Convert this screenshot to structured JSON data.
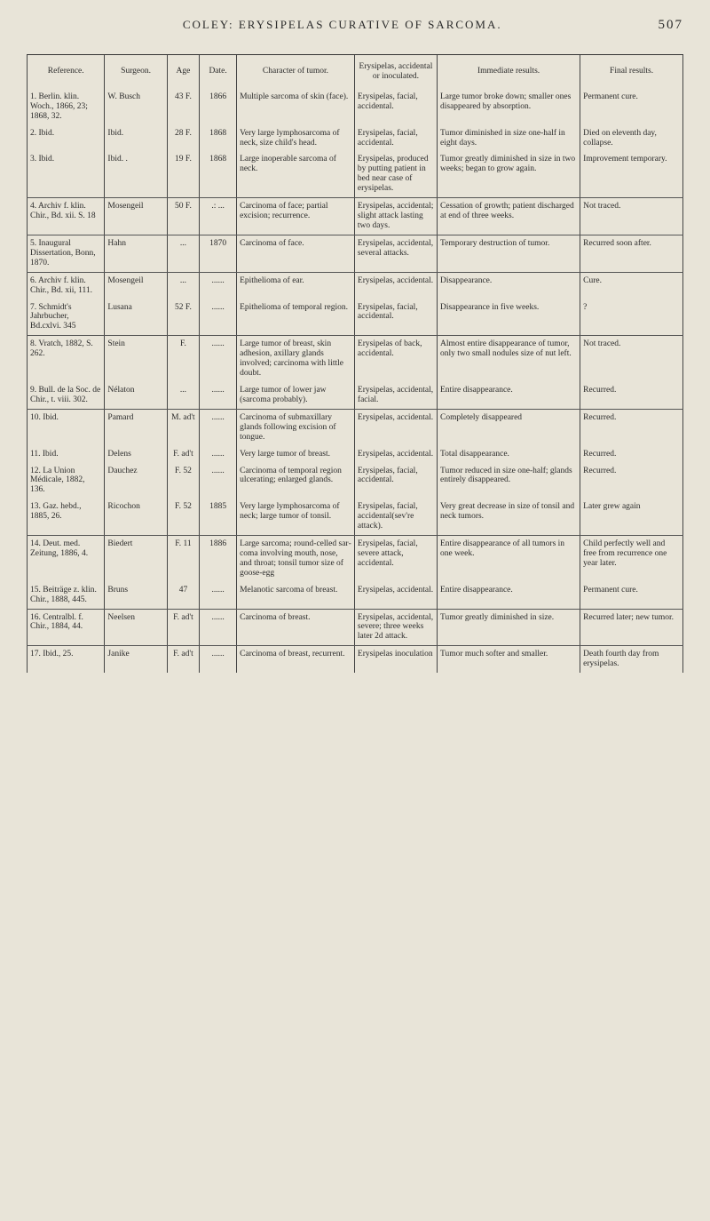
{
  "header": {
    "running_title": "COLEY: ERYSIPELAS CURATIVE OF SARCOMA.",
    "page_number": "507"
  },
  "table": {
    "columns": [
      "Reference.",
      "Surgeon.",
      "Age",
      "Date.",
      "Character of tumor.",
      "Erysipelas, accidental or inoculated.",
      "Immediate results.",
      "Final results."
    ],
    "rows": [
      {
        "ref": "1. Berlin. klin. Woch., 1866, 23; 1868, 32.",
        "surg": "W. Busch",
        "age": "43 F.",
        "date": "1866",
        "char": "Multiple sarcoma of skin (face).",
        "ery": "Erysipelas, facial, acci­dental.",
        "imm": "Large tumor broke down; smaller ones disappeared by ab­sorption.",
        "fin": "Permanent cure."
      },
      {
        "ref": "2. Ibid.",
        "surg": "Ibid.",
        "age": "28 F.",
        "date": "1868",
        "char": "Very large lympho­sarcoma of neck, size child's head.",
        "ery": "Erysipelas, facial, acci­dental.",
        "imm": "Tumor diminished in size one-half in eight days.",
        "fin": "Died on eleventh day, collapse."
      },
      {
        "ref": "3. Ibid.",
        "surg": "Ibid. .",
        "age": "19 F.",
        "date": "1868",
        "char": "Large inoperable sarcoma of neck.",
        "ery": "Erysipelas, produced by putting pa­tient in bed near case of erysipelas.",
        "imm": "Tumor greatly dimin­ished in size in two weeks; began to grow again.",
        "fin": "Improvement temporary."
      },
      {
        "ref": "4. Archiv f. klin. Chir., Bd. xii. S. 18",
        "surg": "Mosengeil",
        "age": "50 F.",
        "date": ".: ...",
        "char": "Carcinoma of face; partial excision; recurrence.",
        "ery": "Erysipelas, accidental; slight attack lasting two days.",
        "imm": "Cessation of growth; patient discharged at end of three weeks.",
        "fin": "Not traced."
      },
      {
        "ref": "5. Inaugural Dissertation, Bonn, 1870.",
        "surg": "Hahn",
        "age": "...",
        "date": "1870",
        "char": "Carcinoma of face.",
        "ery": "Erysipelas, accidental, several at­tacks.",
        "imm": "Temporary destruction of tumor.",
        "fin": "Recurred soon after."
      },
      {
        "ref": "6. Archiv f. klin. Chir., Bd. xii, 111.",
        "surg": "Mosengeil",
        "age": "...",
        "date": "......",
        "char": "Epithelioma of ear.",
        "ery": "Erysipelas, accidental.",
        "imm": "Disappearance.",
        "fin": "Cure."
      },
      {
        "ref": "7. Schmidt's Jahrbucher, Bd.cxlvi. 345",
        "surg": "Lusana",
        "age": "52 F.",
        "date": "......",
        "char": "Epithelioma of temporal region.",
        "ery": "Erysipelas, facial, acci­dental.",
        "imm": "Disappearance in five weeks.",
        "fin": "?"
      },
      {
        "ref": "8. Vratch, 1882, S. 262.",
        "surg": "Stein",
        "age": "F.",
        "date": "......",
        "char": "Large tumor of breast, skin adhe­sion, axillary glands involved; carcinoma with little doubt.",
        "ery": "Erysipelas of back, accidental.",
        "imm": "Almost entire disap­pearance of tumor, only two small no­dules size of nut left.",
        "fin": "Not traced."
      },
      {
        "ref": "9. Bull. de la Soc. de Chir., t. viii. 302.",
        "surg": "Nélaton",
        "age": "...",
        "date": "......",
        "char": "Large tumor of lower jaw (sarco­ma probably).",
        "ery": "Erysipelas, accidental, facial.",
        "imm": "Entire disappearance.",
        "fin": "Recurred."
      },
      {
        "ref": "10. Ibid.",
        "surg": "Pamard",
        "age": "M. ad't",
        "date": "......",
        "char": "Carcinoma of sub­maxillary glands following excision of tongue.",
        "ery": "Erysipelas, accidental.",
        "imm": "Completely disappeared",
        "fin": "Recurred."
      },
      {
        "ref": "11. Ibid.",
        "surg": "Delens",
        "age": "F. ad't",
        "date": "......",
        "char": "Very large tumor of breast.",
        "ery": "Erysipelas, accidental.",
        "imm": "Total disappearance.",
        "fin": "Recurred."
      },
      {
        "ref": "12. La Union Médicale, 1882, 136.",
        "surg": "Dauchez",
        "age": "F. 52",
        "date": "......",
        "char": "Carcinoma of tem­poral region ulce­rating; enlarged glands.",
        "ery": "Erysipelas, facial, acci­dental.",
        "imm": "Tumor reduced in size one-half; glands en­tirely disappeared.",
        "fin": "Recurred."
      },
      {
        "ref": "13. Gaz. hebd., 1885, 26.",
        "surg": "Ricochon",
        "age": "F. 52",
        "date": "1885",
        "char": "Very large lympho­sarcoma of neck; large tumor of tonsil.",
        "ery": "Erysipelas, facial, acci­dental(sev're attack).",
        "imm": "Very great decrease in size of tonsil and neck tumors.",
        "fin": "Later grew again"
      },
      {
        "ref": "14. Deut. med. Zeitung, 1886, 4.",
        "surg": "Biedert",
        "age": "F. 11",
        "date": "1886",
        "char": "Large sarcoma; round-celled sar­coma involving mouth, nose, and throat; tonsil tu­mor size of goose-egg",
        "ery": "Erysipelas, facial, severe attack, accidental.",
        "imm": "Entire disappearance of all tumors in one week.",
        "fin": "Child perfectly well and free from recur­rence one year later."
      },
      {
        "ref": "15. Beiträge z. klin. Chir., 1888, 445.",
        "surg": "Bruns",
        "age": "47",
        "date": "......",
        "char": "Melanotic sarcoma of breast.",
        "ery": "Erysipelas, accidental.",
        "imm": "Entire disappearance.",
        "fin": "Permanent cure."
      },
      {
        "ref": "16. Centralbl. f. Chir., 1884, 44.",
        "surg": "Neelsen",
        "age": "F. ad't",
        "date": "......",
        "char": "Carcinoma of breast.",
        "ery": "Erysipelas, accidental, severe; three weeks later 2d attack.",
        "imm": "Tumor greatly dimin­ished in size.",
        "fin": "Recurred later; new tumor."
      },
      {
        "ref": "17. Ibid., 25.",
        "surg": "Janike",
        "age": "F. ad't",
        "date": "......",
        "char": "Carcinoma of breast, recurrent.",
        "ery": "Erysipelas inoculation",
        "imm": "Tumor much softer and smaller.",
        "fin": "Death fourth day from erysipe­las."
      }
    ]
  }
}
